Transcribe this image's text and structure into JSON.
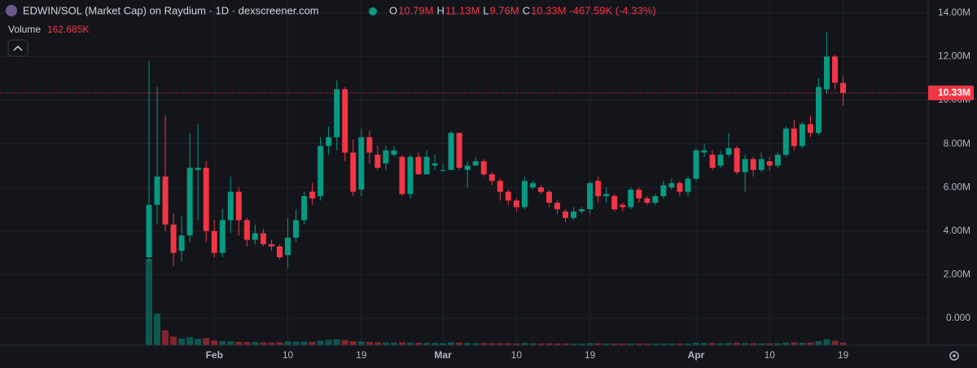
{
  "header": {
    "title": "EDWIN/SOL (Market Cap) on Raydium · 1D · dexscreener.com",
    "ohlc": [
      {
        "key": "O",
        "value": "10.79M"
      },
      {
        "key": "H",
        "value": "11.13M"
      },
      {
        "key": "L",
        "value": "9.76M"
      },
      {
        "key": "C",
        "value": "10.33M"
      }
    ],
    "change": "-467.59K (-4.33%)",
    "volume_label": "Volume",
    "volume_value": "162.685K"
  },
  "chart_data": {
    "type": "candlestick",
    "categories": [
      null,
      null,
      null,
      null,
      null,
      null,
      null,
      null,
      "Feb",
      null,
      null,
      null,
      null,
      null,
      null,
      null,
      null,
      "10",
      null,
      null,
      null,
      null,
      null,
      null,
      null,
      null,
      "19",
      null,
      null,
      null,
      null,
      null,
      null,
      null,
      null,
      null,
      "Mar",
      null,
      null,
      null,
      null,
      null,
      null,
      null,
      null,
      "10",
      null,
      null,
      null,
      null,
      null,
      null,
      null,
      null,
      "19",
      null,
      null,
      null,
      null,
      null,
      null,
      null,
      null,
      null,
      null,
      null,
      null,
      "Apr",
      null,
      null,
      null,
      null,
      null,
      null,
      null,
      null,
      "10",
      null,
      null,
      null,
      null,
      null,
      null,
      null,
      null,
      "19"
    ],
    "open": [
      2800000,
      5200000,
      6500000,
      4300000,
      3100000,
      3800000,
      6800000,
      6900000,
      4000000,
      3000000,
      4500000,
      5800000,
      4500000,
      3600000,
      3900000,
      3400000,
      3300000,
      2900000,
      3700000,
      4500000,
      5800000,
      5600000,
      7900000,
      8300000,
      10500000,
      7600000,
      5900000,
      8300000,
      7500000,
      7100000,
      7500000,
      7400000,
      5700000,
      7400000,
      6600000,
      7000000,
      6800000,
      6800000,
      8500000,
      6800000,
      7000000,
      7200000,
      6600000,
      6300000,
      5800000,
      5400000,
      5100000,
      6000000,
      6000000,
      5800000,
      5300000,
      4900000,
      4600000,
      4900000,
      5000000,
      6300000,
      5600000,
      5600000,
      5200000,
      5100000,
      5900000,
      5500000,
      5300000,
      5600000,
      6000000,
      6200000,
      5800000,
      6400000,
      7600000,
      7500000,
      7000000,
      7500000,
      7800000,
      6700000,
      7300000,
      6800000,
      7200000,
      7000000,
      7500000,
      8700000,
      7900000,
      8900000,
      8500000,
      10500000,
      12000000,
      10790000
    ],
    "high": [
      11800000,
      10600000,
      9300000,
      4800000,
      4700000,
      8500000,
      8900000,
      7200000,
      4500000,
      5000000,
      6500000,
      6000000,
      4600000,
      4300000,
      4100000,
      3600000,
      3400000,
      4600000,
      5000000,
      5800000,
      6200000,
      8300000,
      8800000,
      10900000,
      10600000,
      8200000,
      8700000,
      8600000,
      7900000,
      7900000,
      7900000,
      7500000,
      7500000,
      7600000,
      7700000,
      7500000,
      7100000,
      8600000,
      8500000,
      7200000,
      7400000,
      7300000,
      6700000,
      6400000,
      5900000,
      5500000,
      6500000,
      6300000,
      6100000,
      5900000,
      5400000,
      5000000,
      5100000,
      5100000,
      6300000,
      6500000,
      6000000,
      5700000,
      5300000,
      6000000,
      6000000,
      5600000,
      5700000,
      6300000,
      6400000,
      6300000,
      6500000,
      7800000,
      8000000,
      7700000,
      7700000,
      8500000,
      7900000,
      7500000,
      7400000,
      7600000,
      7400000,
      7600000,
      8800000,
      9100000,
      9000000,
      9300000,
      11000000,
      13100000,
      12100000,
      11130000
    ],
    "low": [
      2600000,
      4300000,
      4000000,
      2400000,
      2600000,
      3500000,
      4500000,
      3500000,
      2800000,
      2800000,
      3900000,
      3800000,
      3300000,
      3400000,
      3300000,
      3100000,
      2700000,
      2300000,
      3500000,
      4300000,
      5200000,
      5400000,
      7500000,
      7700000,
      7200000,
      5600000,
      5600000,
      7100000,
      6800000,
      6800000,
      7400000,
      5600000,
      5500000,
      6600000,
      6600000,
      6800000,
      6700000,
      6800000,
      6800000,
      6000000,
      7000000,
      6500000,
      6100000,
      5400000,
      5200000,
      4900000,
      5000000,
      5900000,
      5700000,
      5100000,
      4800000,
      4400000,
      4500000,
      4800000,
      4800000,
      5300000,
      5300000,
      4900000,
      4900000,
      5000000,
      5300000,
      5200000,
      5200000,
      5500000,
      5900000,
      5600000,
      5600000,
      6300000,
      7400000,
      6800000,
      6900000,
      7400000,
      6600000,
      5800000,
      6500000,
      6700000,
      6800000,
      6900000,
      7400000,
      7700000,
      7800000,
      8300000,
      8400000,
      10300000,
      10500000,
      9760000
    ],
    "close": [
      5200000,
      6500000,
      4300000,
      3000000,
      3800000,
      6900000,
      6900000,
      4000000,
      3000000,
      4500000,
      5800000,
      4500000,
      3600000,
      3900000,
      3400000,
      3300000,
      2800000,
      3700000,
      4500000,
      5600000,
      5500000,
      7900000,
      8300000,
      10500000,
      7600000,
      5800000,
      8300000,
      7600000,
      6900000,
      7700000,
      7700000,
      5700000,
      7400000,
      6600000,
      7400000,
      7100000,
      6800000,
      8500000,
      6900000,
      7000000,
      7200000,
      6600000,
      6300000,
      5800000,
      5400000,
      5100000,
      6300000,
      6200000,
      5800000,
      5300000,
      5000000,
      4600000,
      4900000,
      5000000,
      6200000,
      5600000,
      5700000,
      5000000,
      5100000,
      5900000,
      5500000,
      5300000,
      5600000,
      6100000,
      6200000,
      5800000,
      6400000,
      7700000,
      7700000,
      6900000,
      7500000,
      7800000,
      6700000,
      7300000,
      6800000,
      7300000,
      7000000,
      7500000,
      8700000,
      7900000,
      8900000,
      8500000,
      10600000,
      12000000,
      10800000,
      10330000
    ],
    "volume": [
      5500000,
      2000000,
      950000,
      550000,
      420000,
      500000,
      400000,
      450000,
      300000,
      260000,
      250000,
      220000,
      200000,
      200000,
      180000,
      170000,
      190000,
      240000,
      220000,
      230000,
      210000,
      290000,
      340000,
      380000,
      330000,
      260000,
      240000,
      210000,
      180000,
      170000,
      160000,
      190000,
      170000,
      160000,
      150000,
      140000,
      130000,
      180000,
      170000,
      140000,
      130000,
      140000,
      120000,
      130000,
      120000,
      110000,
      140000,
      120000,
      110000,
      120000,
      110000,
      110000,
      100000,
      100000,
      130000,
      120000,
      110000,
      110000,
      100000,
      110000,
      110000,
      100000,
      100000,
      110000,
      110000,
      110000,
      110000,
      160000,
      150000,
      140000,
      130000,
      150000,
      150000,
      140000,
      130000,
      120000,
      120000,
      130000,
      170000,
      180000,
      160000,
      170000,
      260000,
      380000,
      280000,
      162685
    ],
    "up_color": "#089981",
    "down_color": "#f23645",
    "ylim": [
      -1230000,
      14590000
    ],
    "yticks": [
      {
        "value": 0,
        "label": "0.000"
      },
      {
        "value": 2000000,
        "label": "2.00M"
      },
      {
        "value": 4000000,
        "label": "4.00M"
      },
      {
        "value": 6000000,
        "label": "6.00M"
      },
      {
        "value": 8000000,
        "label": "8.00M"
      },
      {
        "value": 10000000,
        "label": "10.00M"
      },
      {
        "value": 12000000,
        "label": "12.00M"
      },
      {
        "value": 14000000,
        "label": "14.00M"
      }
    ],
    "last_price": {
      "value": 10330000,
      "label": "10.33M"
    },
    "grid": true
  }
}
